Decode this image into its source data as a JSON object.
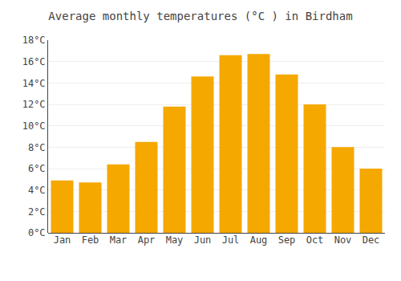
{
  "chart_data": {
    "type": "bar",
    "title": "Average monthly temperatures (°C ) in Birdham",
    "categories": [
      "Jan",
      "Feb",
      "Mar",
      "Apr",
      "May",
      "Jun",
      "Jul",
      "Aug",
      "Sep",
      "Oct",
      "Nov",
      "Dec"
    ],
    "values": [
      4.9,
      4.7,
      6.4,
      8.5,
      11.8,
      14.6,
      16.6,
      16.7,
      14.8,
      12.0,
      8.0,
      6.0
    ],
    "color": "#F5A800",
    "ylim": [
      0,
      18
    ],
    "yticks": [
      {
        "value": 0,
        "label": "0°C"
      },
      {
        "value": 2,
        "label": "2°C"
      },
      {
        "value": 4,
        "label": "4°C"
      },
      {
        "value": 6,
        "label": "6°C"
      },
      {
        "value": 8,
        "label": "8°C"
      },
      {
        "value": 10,
        "label": "10°C"
      },
      {
        "value": 12,
        "label": "12°C"
      },
      {
        "value": 14,
        "label": "14°C"
      },
      {
        "value": 16,
        "label": "16°C"
      },
      {
        "value": 18,
        "label": "18°C"
      }
    ],
    "grid": true
  }
}
